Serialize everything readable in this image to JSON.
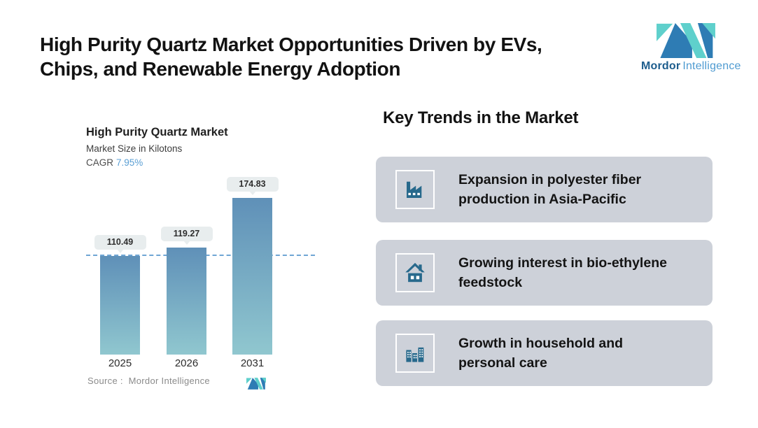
{
  "page_title": "High Purity Quartz Market Opportunities Driven by EVs,\nChips, and Renewable Energy Adoption",
  "brand": {
    "name_primary": "Mordor",
    "name_secondary": "Intelligence"
  },
  "chart_data": {
    "type": "bar",
    "title": "High Purity Quartz Market",
    "subtitle": "Market Size in Kilotons",
    "cagr_label": "CAGR",
    "cagr_value": "7.95%",
    "categories": [
      "2025",
      "2026",
      "2031"
    ],
    "values": [
      110.49,
      119.27,
      174.83
    ],
    "value_labels": [
      "110.49",
      "119.27",
      "174.83"
    ],
    "reference_line_value": 110.49,
    "ylim": [
      0,
      180
    ],
    "grid": false,
    "legend": false,
    "source": "Source :  Mordor Intelligence",
    "bar_gradient_top": "#5f90b8",
    "bar_gradient_bottom": "#90c7cf",
    "reference_line_color": "#6fa6d4"
  },
  "trends": {
    "heading": "Key Trends in the Market",
    "items": [
      {
        "icon": "factory-icon",
        "text": "Expansion in polyester fiber\nproduction in Asia-Pacific"
      },
      {
        "icon": "house-icon",
        "text": "Growing interest in bio-ethylene\nfeedstock"
      },
      {
        "icon": "buildings-icon",
        "text": "Growth in household and\npersonal care"
      }
    ]
  },
  "colors": {
    "accent_blue": "#2e7cb4",
    "accent_teal": "#5fd0cc",
    "card_bg": "#cdd1d9",
    "icon_color": "#27698c",
    "cagr_value_color": "#5b9fd4",
    "bubble_bg": "#e8edee"
  }
}
